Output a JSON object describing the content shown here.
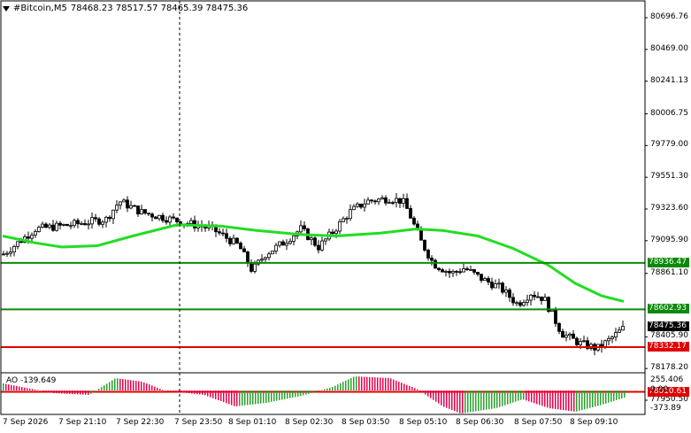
{
  "header": {
    "symbol": "#Bitcoin,M5",
    "ohlc": "78468.23 78517.57 78465.39 78475.36"
  },
  "price_axis": [
    "80696.76",
    "80469.00",
    "80241.13",
    "80006.75",
    "79779.00",
    "79551.30",
    "79323.60",
    "79095.90",
    "78861.10",
    "78405.90",
    "78178.20",
    "77950.50"
  ],
  "levels": [
    {
      "label": "78936.47",
      "color": "#0a8a0a"
    },
    {
      "label": "78602.93",
      "color": "#0a8a0a"
    },
    {
      "label": "78332.17",
      "color": "#e00000"
    },
    {
      "label": "78010.61",
      "color": "#e00000"
    }
  ],
  "current_price": "78475.36",
  "ao": {
    "header": "AO -139.649",
    "axis": [
      "255.406",
      "0.00",
      "-373.89"
    ]
  },
  "time_axis": [
    "7 Sep 2026",
    "7 Sep 21:10",
    "7 Sep 22:30",
    "7 Sep 23:50",
    "8 Sep 01:10",
    "8 Sep 02:30",
    "8 Sep 03:50",
    "8 Sep 05:10",
    "8 Sep 06:30",
    "8 Sep 07:50",
    "8 Sep 09:10"
  ],
  "colors": {
    "ma": "#22dd22",
    "green_level": "#0a8a0a",
    "red_level": "#e00000",
    "ao_up": "#2ca02c",
    "ao_down": "#e8004c"
  }
}
